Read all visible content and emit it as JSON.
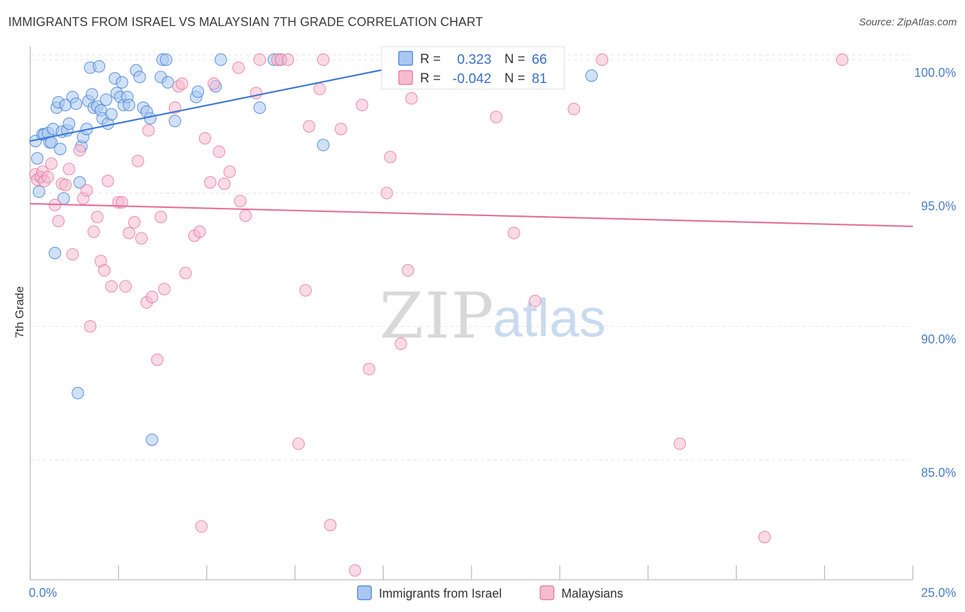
{
  "title": "IMMIGRANTS FROM ISRAEL VS MALAYSIAN 7TH GRADE CORRELATION CHART",
  "source": "Source: ZipAtlas.com",
  "watermark": {
    "part1": "ZIP",
    "part2": "atlas"
  },
  "colors": {
    "blue": "#3a78d4",
    "pink": "#e4709a",
    "blue_fill": "#a9c8f0",
    "pink_fill": "#f5bcd0",
    "axis_text": "#4a7fc1"
  },
  "stats": {
    "blue": {
      "r_label": "R =",
      "r_value": "0.323",
      "n_label": "N =",
      "n_value": "66"
    },
    "pink": {
      "r_label": "R =",
      "r_value": "-0.042",
      "n_label": "N =",
      "n_value": "81"
    }
  },
  "chart_data": {
    "type": "scatter",
    "xlabel": "",
    "ylabel": "7th Grade",
    "xlim": [
      0,
      25
    ],
    "ylim": [
      80.5,
      100.9
    ],
    "x_tick_labels": [
      {
        "value": 0,
        "label": "0.0%"
      },
      {
        "value": 25,
        "label": "25.0%"
      }
    ],
    "x_minor_ticks": [
      0,
      2.5,
      5,
      7.5,
      10,
      12.5,
      15,
      17.5,
      20,
      22.5,
      25
    ],
    "y_ticks": [
      {
        "value": 100,
        "label": "100.0%"
      },
      {
        "value": 95,
        "label": "95.0%"
      },
      {
        "value": 90,
        "label": "90.0%"
      },
      {
        "value": 85,
        "label": "85.0%"
      }
    ],
    "grid": true,
    "legend_position": "bottom-center",
    "series": [
      {
        "name": "Immigrants from Israel",
        "color": "#3a78d4",
        "trend": [
          [
            0,
            96.95
          ],
          [
            11.4,
            100.0
          ]
        ],
        "points": [
          [
            0.15,
            96.95
          ],
          [
            0.2,
            96.3
          ],
          [
            0.25,
            95.05
          ],
          [
            0.3,
            95.6
          ],
          [
            0.35,
            97.2
          ],
          [
            0.4,
            97.2
          ],
          [
            0.5,
            97.25
          ],
          [
            0.55,
            96.9
          ],
          [
            0.6,
            96.9
          ],
          [
            0.65,
            97.4
          ],
          [
            0.7,
            92.75
          ],
          [
            0.75,
            98.2
          ],
          [
            0.8,
            98.4
          ],
          [
            0.85,
            96.65
          ],
          [
            0.9,
            97.3
          ],
          [
            0.95,
            94.8
          ],
          [
            1.0,
            98.3
          ],
          [
            1.05,
            97.35
          ],
          [
            1.1,
            97.6
          ],
          [
            1.2,
            98.6
          ],
          [
            1.3,
            98.35
          ],
          [
            1.35,
            87.5
          ],
          [
            1.4,
            95.4
          ],
          [
            1.45,
            96.75
          ],
          [
            1.5,
            97.1
          ],
          [
            1.6,
            97.4
          ],
          [
            1.65,
            98.45
          ],
          [
            1.7,
            99.7
          ],
          [
            1.75,
            98.7
          ],
          [
            1.8,
            98.2
          ],
          [
            1.9,
            98.25
          ],
          [
            1.95,
            99.75
          ],
          [
            2.0,
            98.1
          ],
          [
            2.05,
            97.8
          ],
          [
            2.15,
            98.5
          ],
          [
            2.2,
            97.6
          ],
          [
            2.3,
            97.95
          ],
          [
            2.4,
            99.3
          ],
          [
            2.45,
            98.75
          ],
          [
            2.55,
            98.6
          ],
          [
            2.6,
            99.15
          ],
          [
            2.65,
            98.3
          ],
          [
            2.75,
            98.6
          ],
          [
            2.8,
            98.3
          ],
          [
            3.0,
            99.6
          ],
          [
            3.1,
            99.35
          ],
          [
            3.2,
            98.2
          ],
          [
            3.3,
            98.05
          ],
          [
            3.4,
            97.8
          ],
          [
            3.45,
            85.75
          ],
          [
            3.7,
            99.35
          ],
          [
            3.75,
            100.0
          ],
          [
            3.85,
            100.0
          ],
          [
            3.9,
            99.15
          ],
          [
            4.1,
            97.7
          ],
          [
            4.7,
            98.6
          ],
          [
            4.75,
            98.8
          ],
          [
            5.25,
            99.0
          ],
          [
            5.4,
            100.0
          ],
          [
            6.5,
            98.2
          ],
          [
            6.9,
            100.0
          ],
          [
            7.1,
            100.0
          ],
          [
            8.3,
            96.8
          ],
          [
            10.2,
            100.0
          ],
          [
            11.8,
            100.0
          ],
          [
            15.9,
            99.4
          ]
        ]
      },
      {
        "name": "Malaysians",
        "color": "#e4709a",
        "trend": [
          [
            0,
            94.6
          ],
          [
            25,
            93.75
          ]
        ],
        "points": [
          [
            0.15,
            95.7
          ],
          [
            0.2,
            95.5
          ],
          [
            0.3,
            95.6
          ],
          [
            0.35,
            95.8
          ],
          [
            0.4,
            95.45
          ],
          [
            0.5,
            95.6
          ],
          [
            0.6,
            96.1
          ],
          [
            0.7,
            94.55
          ],
          [
            0.8,
            93.95
          ],
          [
            0.9,
            95.35
          ],
          [
            1.0,
            95.3
          ],
          [
            1.1,
            95.9
          ],
          [
            1.2,
            92.7
          ],
          [
            1.4,
            96.6
          ],
          [
            1.5,
            94.8
          ],
          [
            1.6,
            95.1
          ],
          [
            1.7,
            90.0
          ],
          [
            1.8,
            93.55
          ],
          [
            1.9,
            94.1
          ],
          [
            2.0,
            92.45
          ],
          [
            2.1,
            92.1
          ],
          [
            2.2,
            95.45
          ],
          [
            2.3,
            91.5
          ],
          [
            2.5,
            94.65
          ],
          [
            2.6,
            94.65
          ],
          [
            2.7,
            91.5
          ],
          [
            2.8,
            93.5
          ],
          [
            2.95,
            93.9
          ],
          [
            3.05,
            96.2
          ],
          [
            3.15,
            93.3
          ],
          [
            3.3,
            90.9
          ],
          [
            3.35,
            97.35
          ],
          [
            3.45,
            91.1
          ],
          [
            3.6,
            88.75
          ],
          [
            3.7,
            94.1
          ],
          [
            3.8,
            91.4
          ],
          [
            4.1,
            98.2
          ],
          [
            4.2,
            99.0
          ],
          [
            4.3,
            99.1
          ],
          [
            4.4,
            92.0
          ],
          [
            4.65,
            93.4
          ],
          [
            4.8,
            93.55
          ],
          [
            4.85,
            82.5
          ],
          [
            4.95,
            97.05
          ],
          [
            5.1,
            95.4
          ],
          [
            5.2,
            99.1
          ],
          [
            5.35,
            96.55
          ],
          [
            5.5,
            95.35
          ],
          [
            5.65,
            95.8
          ],
          [
            5.9,
            99.7
          ],
          [
            5.95,
            94.7
          ],
          [
            6.1,
            94.15
          ],
          [
            6.4,
            98.75
          ],
          [
            6.5,
            100.0
          ],
          [
            7.0,
            100.0
          ],
          [
            7.1,
            100.0
          ],
          [
            7.3,
            100.0
          ],
          [
            7.6,
            85.6
          ],
          [
            7.8,
            91.35
          ],
          [
            7.9,
            97.5
          ],
          [
            8.2,
            98.9
          ],
          [
            8.3,
            100.0
          ],
          [
            8.5,
            82.55
          ],
          [
            8.8,
            97.4
          ],
          [
            9.2,
            80.85
          ],
          [
            9.4,
            98.3
          ],
          [
            9.6,
            88.4
          ],
          [
            10.1,
            95.0
          ],
          [
            10.2,
            96.35
          ],
          [
            10.5,
            89.35
          ],
          [
            10.7,
            92.1
          ],
          [
            10.8,
            98.55
          ],
          [
            11.9,
            100.0
          ],
          [
            13.2,
            97.85
          ],
          [
            13.7,
            93.5
          ],
          [
            14.2,
            100.0
          ],
          [
            14.3,
            90.95
          ],
          [
            15.4,
            98.15
          ],
          [
            16.2,
            100.0
          ],
          [
            18.4,
            85.6
          ],
          [
            20.8,
            82.1
          ],
          [
            23.0,
            100.0
          ]
        ]
      }
    ]
  }
}
